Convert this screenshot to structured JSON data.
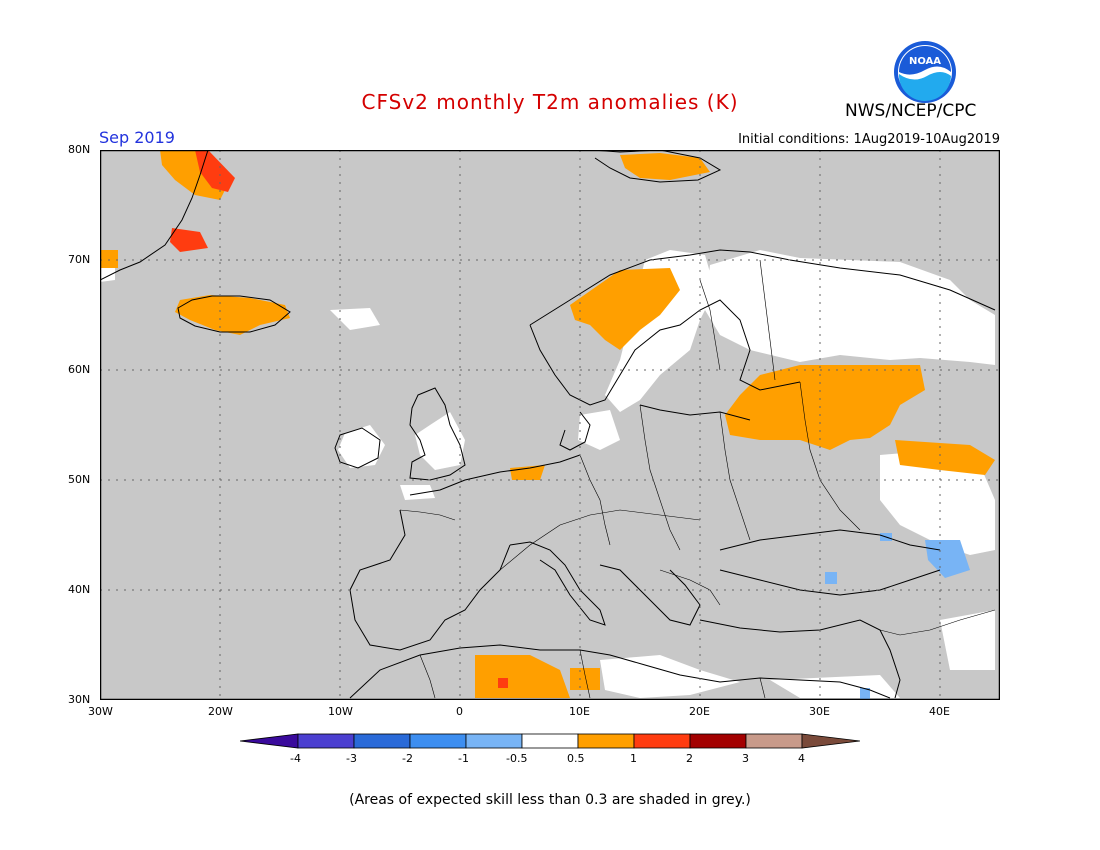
{
  "title": "CFSv2 monthly T2m anomalies (K)",
  "agency": "NWS/NCEP/CPC",
  "logo_text": "NOAA",
  "period": "Sep 2019",
  "initial_conditions": "Initial conditions: 1Aug2019-10Aug2019",
  "footnote": "(Areas of expected skill less than 0.3 are shaded in grey.)",
  "map": {
    "lon_range": [
      -30,
      45
    ],
    "lat_range": [
      30,
      80
    ],
    "lat_labels": [
      "80N",
      "70N",
      "60N",
      "50N",
      "40N",
      "30N"
    ],
    "lon_labels": [
      "30W",
      "20W",
      "10W",
      "0",
      "10E",
      "20E",
      "30E",
      "40E"
    ],
    "grid_lines": "dotted",
    "background_color": "#c8c8c8"
  },
  "colorbar": {
    "tick_labels": [
      "-4",
      "-3",
      "-2",
      "-1",
      "-0.5",
      "0.5",
      "1",
      "2",
      "3",
      "4"
    ],
    "colors": [
      "#3a0a9c",
      "#4b3fd0",
      "#2a6ad8",
      "#3d8ef0",
      "#78b4f5",
      "#ffffff",
      "#ff9f00",
      "#ff3c10",
      "#a30000",
      "#c89a8a",
      "#7a4a3a"
    ]
  },
  "anomaly_regions": [
    {
      "name": "western-russia-baltics",
      "level": "0.5-1",
      "color": "#ff9f00"
    },
    {
      "name": "southern-norway",
      "level": "0.5-1",
      "color": "#ff9f00"
    },
    {
      "name": "iceland",
      "level": "0.5-1",
      "color": "#ff9f00"
    },
    {
      "name": "svalbard",
      "level": "0.5-1",
      "color": "#ff9f00"
    },
    {
      "name": "east-greenland",
      "level": "1-2",
      "color": "#ff3c10"
    },
    {
      "name": "algeria-sahara",
      "level": "0.5-1",
      "color": "#ff9f00"
    },
    {
      "name": "southern-russia",
      "level": "0.5-1",
      "color": "#ff9f00"
    },
    {
      "name": "caucasus",
      "level": "-1--0.5",
      "color": "#78b4f5"
    },
    {
      "name": "scandinavia-finland",
      "level": "-0.5-0.5",
      "color": "#ffffff"
    },
    {
      "name": "british-isles",
      "level": "-0.5-0.5",
      "color": "#ffffff"
    }
  ]
}
